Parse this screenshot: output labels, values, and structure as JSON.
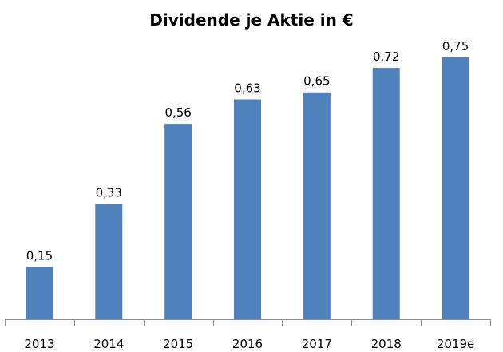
{
  "chart_data": {
    "type": "bar",
    "title": "Dividende je Aktie in €",
    "categories": [
      "2013",
      "2014",
      "2015",
      "2016",
      "2017",
      "2018",
      "2019e"
    ],
    "values": [
      0.15,
      0.33,
      0.56,
      0.63,
      0.65,
      0.72,
      0.75
    ],
    "data_labels": [
      "0,15",
      "0,33",
      "0,56",
      "0,63",
      "0,65",
      "0,72",
      "0,75"
    ],
    "xlabel": "",
    "ylabel": "",
    "ylim": [
      0,
      0.75
    ],
    "grid": false,
    "legend": "none",
    "bar_color": "#4F81BD"
  }
}
